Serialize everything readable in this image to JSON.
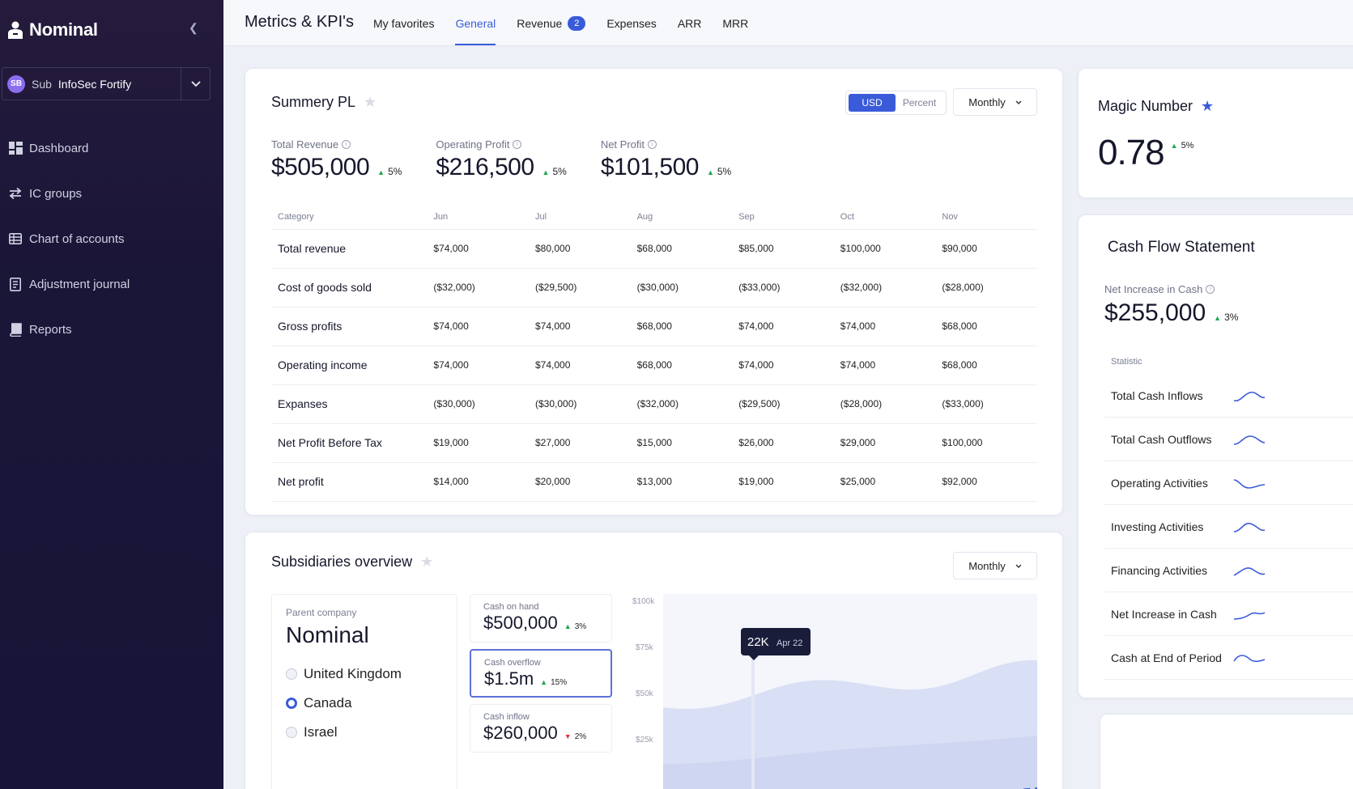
{
  "app": {
    "name": "Nominal"
  },
  "sidebar": {
    "company": {
      "badge": "SB",
      "label": "Sub",
      "name": "InfoSec Fortify"
    },
    "items": [
      {
        "label": "Dashboard",
        "icon": "dashboard-icon"
      },
      {
        "label": "IC groups",
        "icon": "swap-arrows-icon"
      },
      {
        "label": "Chart of accounts",
        "icon": "table-icon"
      },
      {
        "label": "Adjustment journal",
        "icon": "journal-icon"
      },
      {
        "label": "Reports",
        "icon": "reports-icon"
      }
    ]
  },
  "header": {
    "title": "Metrics & KPI's",
    "tabs": [
      {
        "label": "My favorites"
      },
      {
        "label": "General",
        "active": true
      },
      {
        "label": "Revenue",
        "badge": "2"
      },
      {
        "label": "Expenses"
      },
      {
        "label": "ARR"
      },
      {
        "label": "MRR"
      }
    ]
  },
  "summary": {
    "title": "Summery PL",
    "toggle": {
      "on": "USD",
      "off": "Percent"
    },
    "period": "Monthly",
    "kpis": [
      {
        "label": "Total Revenue",
        "value": "$505,000",
        "change": "5%"
      },
      {
        "label": "Operating Profit",
        "value": "$216,500",
        "change": "5%"
      },
      {
        "label": "Net Profit",
        "value": "$101,500",
        "change": "5%"
      }
    ],
    "columns": [
      "Category",
      "Jun",
      "Jul",
      "Aug",
      "Sep",
      "Oct",
      "Nov"
    ],
    "rows": [
      [
        "Total revenue",
        "$74,000",
        "$80,000",
        "$68,000",
        "$85,000",
        "$100,000",
        "$90,000"
      ],
      [
        "Cost of goods sold",
        "($32,000)",
        "($29,500)",
        "($30,000)",
        "($33,000)",
        "($32,000)",
        "($28,000)"
      ],
      [
        "Gross profits",
        "$74,000",
        "$74,000",
        "$68,000",
        "$74,000",
        "$74,000",
        "$68,000"
      ],
      [
        "Operating income",
        "$74,000",
        "$74,000",
        "$68,000",
        "$74,000",
        "$74,000",
        "$68,000"
      ],
      [
        "Expanses",
        "($30,000)",
        "($30,000)",
        "($32,000)",
        "($29,500)",
        "($28,000)",
        "($33,000)"
      ],
      [
        "Net Profit Before Tax",
        "$19,000",
        "$27,000",
        "$15,000",
        "$26,000",
        "$29,000",
        "$100,000"
      ],
      [
        "Net profit",
        "$14,000",
        "$20,000",
        "$13,000",
        "$19,000",
        "$25,000",
        "$92,000"
      ]
    ]
  },
  "subsidiaries": {
    "title": "Subsidiaries overview",
    "period": "Monthly",
    "parent_label": "Parent company",
    "parent_name": "Nominal",
    "countries": [
      {
        "name": "United Kingdom",
        "selected": false
      },
      {
        "name": "Canada",
        "selected": true
      },
      {
        "name": "Israel",
        "selected": false
      }
    ],
    "metrics": [
      {
        "label": "Cash on hand",
        "value": "$500,000",
        "change": "3%",
        "direction": "up"
      },
      {
        "label": "Cash overflow",
        "value": "$1.5m",
        "change": "15%",
        "direction": "up"
      },
      {
        "label": "Cash inflow",
        "value": "$260,000",
        "change": "2%",
        "direction": "down"
      }
    ],
    "chart": {
      "y_ticks": [
        "$100k",
        "$75k",
        "$50k",
        "$25k"
      ],
      "tooltip": {
        "value": "22K",
        "date": "Apr 22"
      }
    }
  },
  "magic": {
    "title": "Magic Number",
    "value": "0.78",
    "change": "5%"
  },
  "cashflow": {
    "title": "Cash Flow Statement",
    "kpi_label": "Net Increase in Cash",
    "kpi_value": "$255,000",
    "kpi_change": "3%",
    "stat_header": "Statistic",
    "stats": [
      "Total Cash Inflows",
      "Total Cash Outflows",
      "Operating Activities",
      "Investing Activities",
      "Financing Activities",
      "Net Increase in Cash",
      "Cash at End of Period"
    ]
  },
  "colors": {
    "sidebar": "#1a1638",
    "accent": "#3a5bd9",
    "positive": "#1fa74d",
    "negative": "#d9354a"
  }
}
